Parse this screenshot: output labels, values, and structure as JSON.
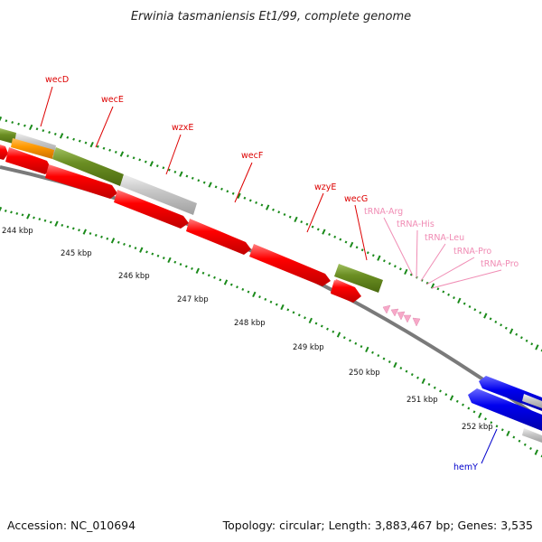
{
  "title": "Erwinia tasmaniensis Et1/99, complete genome",
  "accession_text": "Accession: NC_010694",
  "summary_text": "Topology: circular; Length: 3,883,467 bp; Genes: 3,535",
  "colors": {
    "forward_gene": "#ff0000",
    "reverse_gene": "#0000ee",
    "olive_feature": "#6b8e23",
    "grey_feature": "#c8c8c8",
    "orange_feature": "#ff9900",
    "trna": "#f7a8c8",
    "tick": "#1a8a1a",
    "backbone": "#808080"
  },
  "ticks": [
    {
      "label": "244 kbp"
    },
    {
      "label": "245 kbp"
    },
    {
      "label": "246 kbp"
    },
    {
      "label": "247 kbp"
    },
    {
      "label": "248 kbp"
    },
    {
      "label": "249 kbp"
    },
    {
      "label": "250 kbp"
    },
    {
      "label": "251 kbp"
    },
    {
      "label": "252 kbp"
    }
  ],
  "gene_labels": [
    {
      "name": "wecD",
      "color": "#dd0000"
    },
    {
      "name": "wecE",
      "color": "#dd0000"
    },
    {
      "name": "wzxE",
      "color": "#dd0000"
    },
    {
      "name": "wecF",
      "color": "#dd0000"
    },
    {
      "name": "wzyE",
      "color": "#dd0000"
    },
    {
      "name": "wecG",
      "color": "#dd0000"
    },
    {
      "name": "tRNA-Arg",
      "color": "#f08cb4"
    },
    {
      "name": "tRNA-His",
      "color": "#f08cb4"
    },
    {
      "name": "tRNA-Leu",
      "color": "#f08cb4"
    },
    {
      "name": "tRNA-Pro",
      "color": "#f08cb4"
    },
    {
      "name": "tRNA-Pro",
      "color": "#f08cb4"
    },
    {
      "name": "hemY",
      "color": "#0000cc"
    }
  ]
}
